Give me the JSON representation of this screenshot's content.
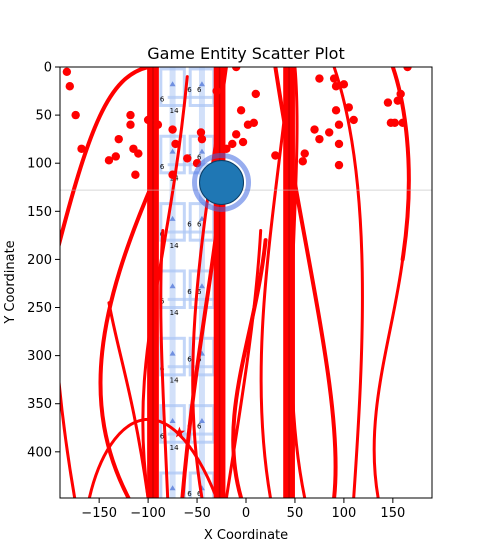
{
  "chart_data": {
    "type": "scatter",
    "title": "Game Entity Scatter Plot",
    "xlabel": "X Coordinate",
    "ylabel": "Y Coordinate",
    "xlim": [
      -190,
      190
    ],
    "ylim": [
      448,
      0
    ],
    "y_inverted": true,
    "x_ticks": [
      -150,
      -100,
      -50,
      0,
      50,
      100,
      150
    ],
    "x_tick_labels": [
      "−150",
      "−100",
      "−50",
      "0",
      "50",
      "100",
      "150"
    ],
    "y_ticks": [
      0,
      50,
      100,
      150,
      200,
      250,
      300,
      350,
      400
    ],
    "y_tick_labels": [
      "0",
      "50",
      "100",
      "150",
      "200",
      "250",
      "300",
      "350",
      "400"
    ],
    "grid": false,
    "colors": {
      "entities": "#ff0000",
      "tiles": "#aec7f5",
      "markers": "#6f8fe0",
      "player": "#1f77b4",
      "player_ring": "#4169e1"
    },
    "player": {
      "x": -25,
      "y": 120,
      "label": ""
    },
    "crosshair": {
      "x": -25,
      "y": 128
    },
    "star": {
      "x": -68,
      "y": 380
    },
    "columns": [
      {
        "x": -95,
        "width": 12
      },
      {
        "x": -27,
        "width": 12
      },
      {
        "x": 44,
        "width": 12
      }
    ],
    "tile_columns": [
      -75,
      -45
    ],
    "tile_rows": [
      0,
      70,
      140,
      210,
      280,
      350,
      420
    ],
    "tile_labels": [
      "5",
      "6",
      "6",
      "6",
      "14"
    ],
    "entity_points": [
      {
        "x": -183,
        "y": 5
      },
      {
        "x": -180,
        "y": 20
      },
      {
        "x": -174,
        "y": 50
      },
      {
        "x": -168,
        "y": 85
      },
      {
        "x": -140,
        "y": 97
      },
      {
        "x": -133,
        "y": 93
      },
      {
        "x": -130,
        "y": 75
      },
      {
        "x": -118,
        "y": 50
      },
      {
        "x": -118,
        "y": 60
      },
      {
        "x": -115,
        "y": 85
      },
      {
        "x": -110,
        "y": 90
      },
      {
        "x": -113,
        "y": 112
      },
      {
        "x": -100,
        "y": 55
      },
      {
        "x": -90,
        "y": 60
      },
      {
        "x": -75,
        "y": 65
      },
      {
        "x": -72,
        "y": 80
      },
      {
        "x": -75,
        "y": 112
      },
      {
        "x": -60,
        "y": 95
      },
      {
        "x": -50,
        "y": 100
      },
      {
        "x": -46,
        "y": 68
      },
      {
        "x": -45,
        "y": 75
      },
      {
        "x": -30,
        "y": 25
      },
      {
        "x": -20,
        "y": 85
      },
      {
        "x": -14,
        "y": 80
      },
      {
        "x": -10,
        "y": 70
      },
      {
        "x": -5,
        "y": 45
      },
      {
        "x": -3,
        "y": 78
      },
      {
        "x": 2,
        "y": 60
      },
      {
        "x": 8,
        "y": 58
      },
      {
        "x": 10,
        "y": 28
      },
      {
        "x": 30,
        "y": 92
      },
      {
        "x": 60,
        "y": 90
      },
      {
        "x": 58,
        "y": 98
      },
      {
        "x": 70,
        "y": 65
      },
      {
        "x": 75,
        "y": 75
      },
      {
        "x": 75,
        "y": 12
      },
      {
        "x": 85,
        "y": 68
      },
      {
        "x": 90,
        "y": 12
      },
      {
        "x": 92,
        "y": 20
      },
      {
        "x": 92,
        "y": 45
      },
      {
        "x": 95,
        "y": 60
      },
      {
        "x": 95,
        "y": 80
      },
      {
        "x": 95,
        "y": 102
      },
      {
        "x": 100,
        "y": 18
      },
      {
        "x": 105,
        "y": 42
      },
      {
        "x": 110,
        "y": 55
      },
      {
        "x": 145,
        "y": 37
      },
      {
        "x": 148,
        "y": 58
      },
      {
        "x": 152,
        "y": 58
      },
      {
        "x": 155,
        "y": 35
      },
      {
        "x": 158,
        "y": 28
      },
      {
        "x": 160,
        "y": 58
      },
      {
        "x": 165,
        "y": 0
      },
      {
        "x": -10,
        "y": 0
      }
    ]
  }
}
